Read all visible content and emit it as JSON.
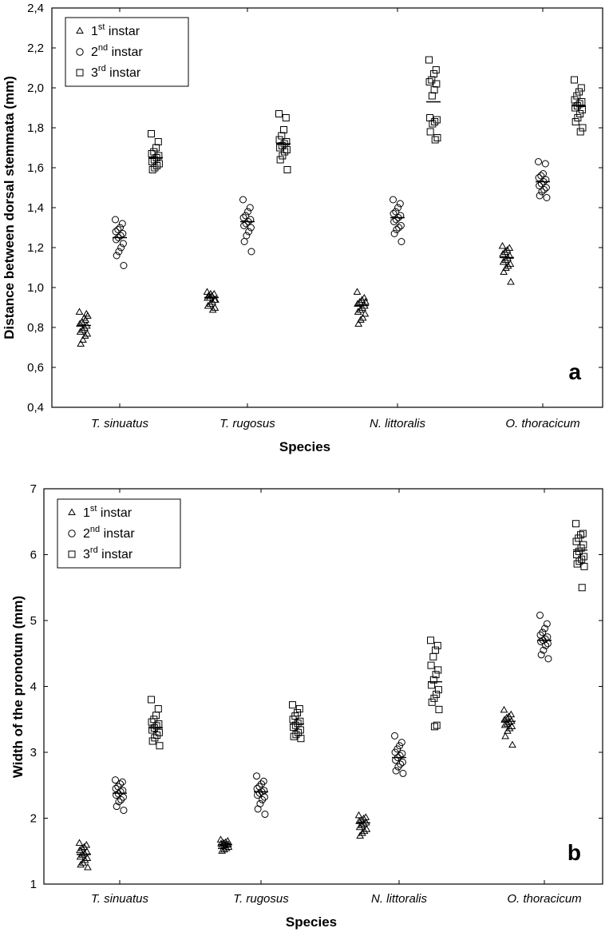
{
  "chart_data": [
    {
      "type": "scatter",
      "panel_label": "a",
      "xlabel": "Species",
      "ylabel": "Distance between dorsal stemmata (mm)",
      "categories": [
        "T. sinuatus",
        "T. rugosus",
        "N. littoralis",
        "O. thoracicum"
      ],
      "ylim": [
        0.4,
        2.4
      ],
      "yticks": [
        "0,4",
        "0,6",
        "0,8",
        "1,0",
        "1,2",
        "1,4",
        "1,6",
        "1,8",
        "2,0",
        "2,2",
        "2,4"
      ],
      "legend_position": "top-left",
      "series": [
        {
          "name": "1st instar",
          "legend_main": "1",
          "legend_sup": "st",
          "legend_rest": " instar",
          "marker": "triangle",
          "means": [
            0.81,
            0.95,
            0.91,
            1.15
          ],
          "values": [
            [
              0.88,
              0.87,
              0.85,
              0.83,
              0.82,
              0.81,
              0.8,
              0.79,
              0.78,
              0.77,
              0.76,
              0.74,
              0.72,
              0.86,
              0.84
            ],
            [
              0.98,
              0.97,
              0.96,
              0.95,
              0.95,
              0.94,
              0.93,
              0.92,
              0.91,
              0.9,
              0.89,
              0.97,
              0.96,
              0.94
            ],
            [
              0.98,
              0.95,
              0.94,
              0.93,
              0.92,
              0.91,
              0.9,
              0.89,
              0.88,
              0.87,
              0.85,
              0.84,
              0.82,
              0.93
            ],
            [
              1.21,
              1.2,
              1.19,
              1.18,
              1.17,
              1.16,
              1.15,
              1.14,
              1.13,
              1.12,
              1.11,
              1.1,
              1.08,
              1.03
            ]
          ]
        },
        {
          "name": "2nd instar",
          "legend_main": "2",
          "legend_sup": "nd",
          "legend_rest": " instar",
          "marker": "circle",
          "means": [
            1.25,
            1.33,
            1.35,
            1.53
          ],
          "values": [
            [
              1.34,
              1.32,
              1.3,
              1.29,
              1.28,
              1.27,
              1.26,
              1.25,
              1.24,
              1.22,
              1.2,
              1.18,
              1.16,
              1.11
            ],
            [
              1.44,
              1.4,
              1.38,
              1.36,
              1.35,
              1.34,
              1.33,
              1.32,
              1.31,
              1.3,
              1.28,
              1.26,
              1.23,
              1.18
            ],
            [
              1.44,
              1.42,
              1.4,
              1.38,
              1.37,
              1.36,
              1.35,
              1.34,
              1.33,
              1.31,
              1.3,
              1.29,
              1.27,
              1.23
            ],
            [
              1.63,
              1.62,
              1.57,
              1.56,
              1.55,
              1.54,
              1.53,
              1.52,
              1.51,
              1.5,
              1.49,
              1.48,
              1.46,
              1.45
            ]
          ]
        },
        {
          "name": "3rd instar",
          "legend_main": "3",
          "legend_sup": "rd",
          "legend_rest": " instar",
          "marker": "square",
          "means": [
            1.65,
            1.72,
            1.93,
            1.91
          ],
          "values": [
            [
              1.77,
              1.73,
              1.7,
              1.68,
              1.67,
              1.66,
              1.65,
              1.64,
              1.63,
              1.62,
              1.61,
              1.6,
              1.59
            ],
            [
              1.87,
              1.85,
              1.79,
              1.76,
              1.74,
              1.73,
              1.72,
              1.71,
              1.7,
              1.69,
              1.68,
              1.66,
              1.64,
              1.59
            ],
            [
              2.14,
              2.09,
              2.07,
              2.04,
              2.03,
              2.02,
              1.99,
              1.96,
              1.85,
              1.84,
              1.83,
              1.82,
              1.78,
              1.75,
              1.74
            ],
            [
              2.04,
              2.0,
              1.98,
              1.96,
              1.94,
              1.93,
              1.92,
              1.91,
              1.9,
              1.89,
              1.87,
              1.85,
              1.83,
              1.8,
              1.78
            ]
          ]
        }
      ]
    },
    {
      "type": "scatter",
      "panel_label": "b",
      "xlabel": "Species",
      "ylabel": "Width of the pronotum (mm)",
      "categories": [
        "T. sinuatus",
        "T. rugosus",
        "N. littoralis",
        "O. thoracicum"
      ],
      "ylim": [
        1,
        7
      ],
      "yticks": [
        "1",
        "2",
        "3",
        "4",
        "5",
        "6",
        "7"
      ],
      "legend_position": "top-left",
      "series": [
        {
          "name": "1st instar",
          "legend_main": "1",
          "legend_sup": "st",
          "legend_rest": " instar",
          "marker": "triangle",
          "means": [
            1.45,
            1.6,
            1.93,
            3.47
          ],
          "values": [
            [
              1.63,
              1.6,
              1.57,
              1.55,
              1.52,
              1.5,
              1.47,
              1.45,
              1.42,
              1.4,
              1.37,
              1.33,
              1.3,
              1.26
            ],
            [
              1.68,
              1.66,
              1.64,
              1.63,
              1.62,
              1.61,
              1.6,
              1.59,
              1.58,
              1.57,
              1.55,
              1.53,
              1.51
            ],
            [
              2.05,
              2.02,
              2.0,
              1.98,
              1.96,
              1.94,
              1.92,
              1.9,
              1.87,
              1.84,
              1.81,
              1.78,
              1.74
            ],
            [
              3.65,
              3.58,
              3.55,
              3.53,
              3.5,
              3.48,
              3.46,
              3.44,
              3.42,
              3.4,
              3.37,
              3.33,
              3.25,
              3.12
            ]
          ]
        },
        {
          "name": "2nd instar",
          "legend_main": "2",
          "legend_sup": "nd",
          "legend_rest": " instar",
          "marker": "circle",
          "means": [
            2.38,
            2.4,
            2.92,
            4.7
          ],
          "values": [
            [
              2.58,
              2.55,
              2.52,
              2.48,
              2.45,
              2.42,
              2.4,
              2.37,
              2.35,
              2.32,
              2.28,
              2.25,
              2.18,
              2.12
            ],
            [
              2.64,
              2.56,
              2.52,
              2.48,
              2.45,
              2.42,
              2.4,
              2.38,
              2.35,
              2.32,
              2.28,
              2.22,
              2.14,
              2.06
            ],
            [
              3.25,
              3.15,
              3.1,
              3.05,
              3.0,
              2.98,
              2.95,
              2.92,
              2.88,
              2.85,
              2.82,
              2.78,
              2.72,
              2.68
            ],
            [
              5.08,
              4.95,
              4.88,
              4.82,
              4.78,
              4.75,
              4.72,
              4.7,
              4.68,
              4.65,
              4.62,
              4.55,
              4.48,
              4.42
            ]
          ]
        },
        {
          "name": "3rd instar",
          "legend_main": "3",
          "legend_sup": "rd",
          "legend_rest": " instar",
          "marker": "square",
          "means": [
            3.37,
            3.43,
            4.07,
            6.07
          ],
          "values": [
            [
              3.8,
              3.66,
              3.56,
              3.5,
              3.46,
              3.43,
              3.4,
              3.37,
              3.34,
              3.3,
              3.26,
              3.22,
              3.17,
              3.1
            ],
            [
              3.72,
              3.66,
              3.6,
              3.55,
              3.5,
              3.47,
              3.44,
              3.41,
              3.38,
              3.34,
              3.3,
              3.27,
              3.24,
              3.21
            ],
            [
              4.7,
              4.62,
              4.55,
              4.45,
              4.32,
              4.25,
              4.18,
              4.1,
              4.02,
              3.95,
              3.88,
              3.82,
              3.76,
              3.65,
              3.41,
              3.39
            ],
            [
              6.47,
              6.32,
              6.3,
              6.25,
              6.2,
              6.15,
              6.1,
              6.05,
              6.0,
              5.97,
              5.93,
              5.9,
              5.86,
              5.82,
              5.5
            ]
          ]
        }
      ]
    }
  ]
}
